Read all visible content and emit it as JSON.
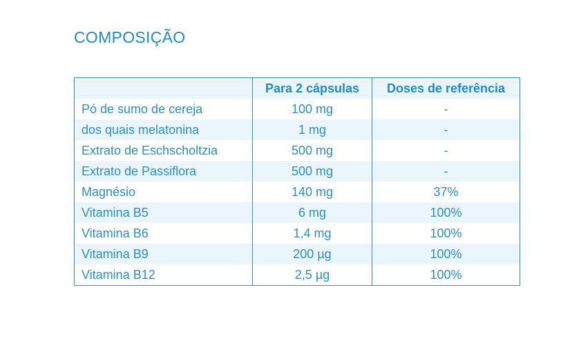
{
  "title": "COMPOSIÇÃO",
  "table": {
    "headers": [
      "",
      "Para 2 cápsulas",
      "Doses de referência"
    ],
    "rows": [
      {
        "name": "Pó de sumo de cereja",
        "amount": "100 mg",
        "reference": "-"
      },
      {
        "name": "dos quais melatonina",
        "amount": "1 mg",
        "reference": "-"
      },
      {
        "name": "Extrato de Eschscholtzia",
        "amount": "500 mg",
        "reference": "-"
      },
      {
        "name": "Extrato de Passiflora",
        "amount": "500 mg",
        "reference": "-"
      },
      {
        "name": "Magnésio",
        "amount": "140 mg",
        "reference": "37%"
      },
      {
        "name": "Vitamina B5",
        "amount": "6 mg",
        "reference": "100%"
      },
      {
        "name": "Vitamina B6",
        "amount": "1,4 mg",
        "reference": "100%"
      },
      {
        "name": "Vitamina B9",
        "amount": "200 µg",
        "reference": "100%"
      },
      {
        "name": "Vitamina B12",
        "amount": "2,5 µg",
        "reference": "100%"
      }
    ]
  },
  "colors": {
    "accent": "#1a8ccc",
    "border": "#2b8fc8",
    "row_shade": "#eaf5fc"
  }
}
